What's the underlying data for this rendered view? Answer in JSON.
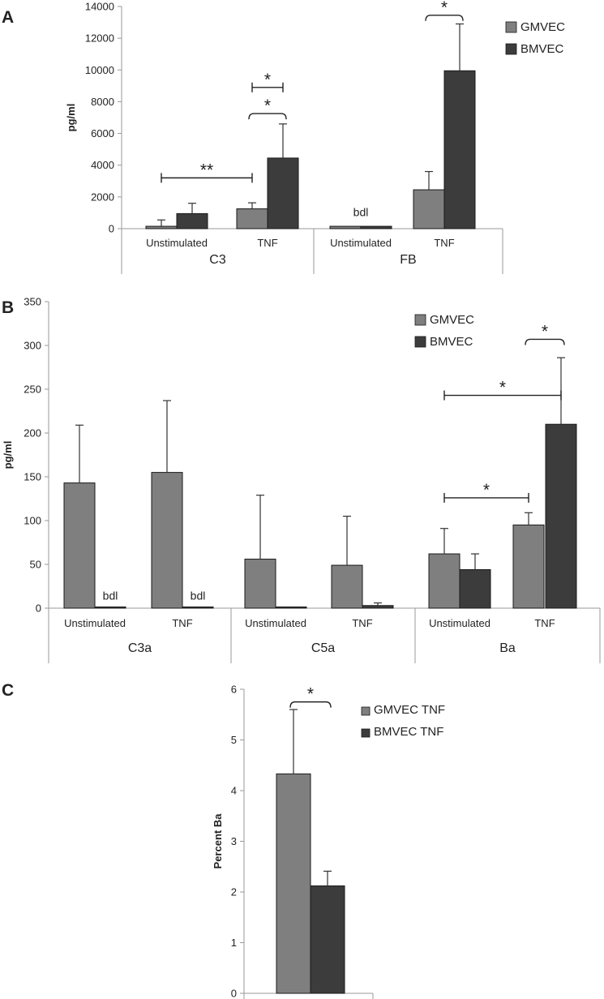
{
  "chart_data": [
    {
      "panel": "A",
      "type": "bar",
      "ylabel": "pg/ml",
      "ylim": [
        0,
        14000
      ],
      "yticks": [
        0,
        2000,
        4000,
        6000,
        8000,
        10000,
        12000,
        14000
      ],
      "groups": [
        {
          "name": "C3",
          "categories": [
            "Unstimulated",
            "TNF"
          ]
        },
        {
          "name": "FB",
          "categories": [
            "Unstimulated",
            "TNF"
          ]
        }
      ],
      "series": [
        {
          "name": "GMVEC",
          "color": "#7f7f7f",
          "values": [
            150,
            1250,
            150,
            2450
          ],
          "errors": [
            400,
            380,
            0,
            1150
          ]
        },
        {
          "name": "BMVEC",
          "color": "#3c3c3c",
          "values": [
            950,
            4450,
            150,
            9950
          ],
          "errors": [
            650,
            2150,
            0,
            2950
          ]
        }
      ],
      "annotations": [
        {
          "text": "bdl",
          "group": 1,
          "category": 0,
          "y": 600
        },
        {
          "text": "**",
          "from": [
            0,
            0
          ],
          "to": [
            0,
            1
          ],
          "y": 3200
        },
        {
          "text": "*",
          "from": [
            0,
            1
          ],
          "to": [
            1,
            1
          ],
          "y": 8900
        },
        {
          "text": "*",
          "from": [
            0,
            1
          ],
          "to": [
            1,
            1
          ],
          "y": 7250,
          "bracket": true,
          "inner": true
        },
        {
          "text": "*",
          "from": [
            0,
            3
          ],
          "to": [
            1,
            3
          ],
          "y": 13450,
          "bracket": true,
          "inner": true
        }
      ]
    },
    {
      "panel": "B",
      "type": "bar",
      "ylabel": "pg/ml",
      "ylim": [
        0,
        350
      ],
      "yticks": [
        0,
        50,
        100,
        150,
        200,
        250,
        300,
        350
      ],
      "groups": [
        {
          "name": "C3a",
          "categories": [
            "Unstimulated",
            "TNF"
          ]
        },
        {
          "name": "C5a",
          "categories": [
            "Unstimulated",
            "TNF"
          ]
        },
        {
          "name": "Ba",
          "categories": [
            "Unstimulated",
            "TNF"
          ]
        }
      ],
      "series": [
        {
          "name": "GMVEC",
          "color": "#7f7f7f",
          "values": [
            143,
            155,
            56,
            49,
            62,
            95
          ],
          "errors": [
            66,
            82,
            73,
            56,
            29,
            14
          ]
        },
        {
          "name": "BMVEC",
          "color": "#3c3c3c",
          "values": [
            1,
            1,
            1,
            3,
            44,
            210
          ],
          "errors": [
            0,
            0,
            0,
            3,
            18,
            76
          ]
        }
      ],
      "annotations": [
        {
          "text": "bdl",
          "group": 0,
          "category": 0,
          "y": 6
        },
        {
          "text": "bdl",
          "group": 0,
          "category": 1,
          "y": 6
        },
        {
          "text": "*",
          "from": [
            0,
            4
          ],
          "to": [
            0,
            5
          ],
          "y": 126
        },
        {
          "text": "*",
          "from": [
            0,
            4
          ],
          "to": [
            1,
            5
          ],
          "y": 243
        },
        {
          "text": "*",
          "from": [
            0,
            5
          ],
          "to": [
            1,
            5
          ],
          "y": 307,
          "bracket": true,
          "inner": true
        }
      ]
    },
    {
      "panel": "C",
      "type": "bar",
      "ylabel": "Percent Ba",
      "ylim": [
        0,
        6
      ],
      "yticks": [
        0,
        1,
        2,
        3,
        4,
        5,
        6
      ],
      "groups": [
        {
          "name": "",
          "categories": [
            ""
          ]
        }
      ],
      "series": [
        {
          "name": "GMVEC TNF",
          "color": "#7f7f7f",
          "values": [
            4.33
          ],
          "errors": [
            1.27
          ]
        },
        {
          "name": "BMVEC TNF",
          "color": "#3c3c3c",
          "values": [
            2.12
          ],
          "errors": [
            0.29
          ]
        }
      ],
      "annotations": [
        {
          "text": "*",
          "from": [
            0,
            0
          ],
          "to": [
            1,
            0
          ],
          "y": 5.75,
          "bracket": true,
          "inner": true
        }
      ]
    }
  ]
}
